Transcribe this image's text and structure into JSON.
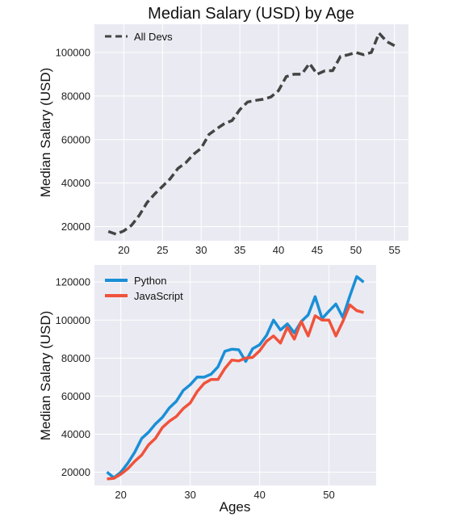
{
  "chart_data": [
    {
      "type": "line",
      "title": "Median Salary (USD) by Age",
      "xlabel": "",
      "ylabel": "Median Salary (USD)",
      "xlim": [
        16.2,
        56.8
      ],
      "ylim": [
        13500,
        113000
      ],
      "xticks": [
        20,
        25,
        30,
        35,
        40,
        45,
        50,
        55
      ],
      "yticks": [
        20000,
        40000,
        60000,
        80000,
        100000
      ],
      "grid": true,
      "legend_position": "top-left",
      "series": [
        {
          "name": "All Devs",
          "style": "dashed",
          "color": "#444444",
          "x": [
            18,
            19,
            20,
            21,
            22,
            23,
            24,
            25,
            26,
            27,
            28,
            29,
            30,
            31,
            32,
            33,
            34,
            35,
            36,
            37,
            38,
            39,
            40,
            41,
            42,
            43,
            44,
            45,
            46,
            47,
            48,
            49,
            50,
            51,
            52,
            53,
            54,
            55
          ],
          "y": [
            17784,
            16500,
            18012,
            20628,
            25206,
            31047,
            35000,
            38496,
            42000,
            46752,
            49320,
            53200,
            56000,
            62316,
            64928,
            67317,
            68748,
            73752,
            77232,
            78000,
            78508,
            79536,
            82488,
            88935,
            90000,
            90056,
            95000,
            90000,
            91633,
            91660,
            98150,
            98964,
            100000,
            98988,
            100000,
            108923,
            105000,
            103117
          ]
        }
      ]
    },
    {
      "type": "line",
      "title": "",
      "xlabel": "Ages",
      "ylabel": "Median Salary (USD)",
      "xlim": [
        16.2,
        56.8
      ],
      "ylim": [
        13000,
        129000
      ],
      "xticks": [
        20,
        30,
        40,
        50
      ],
      "yticks": [
        20000,
        40000,
        60000,
        80000,
        100000,
        120000
      ],
      "grid": true,
      "legend_position": "top-left",
      "series": [
        {
          "name": "Python",
          "color": "#1a8fd6",
          "x": [
            18,
            19,
            20,
            21,
            22,
            23,
            24,
            25,
            26,
            27,
            28,
            29,
            30,
            31,
            32,
            33,
            34,
            35,
            36,
            37,
            38,
            39,
            40,
            41,
            42,
            43,
            44,
            45,
            46,
            47,
            48,
            49,
            50,
            51,
            52,
            53,
            54,
            55
          ],
          "y": [
            20046,
            17100,
            20000,
            24744,
            30500,
            37732,
            41000,
            45372,
            48876,
            53850,
            57287,
            63016,
            65998,
            70003,
            70000,
            71496,
            75370,
            83640,
            84666,
            84392,
            78254,
            85000,
            87038,
            91991,
            100000,
            94796,
            97962,
            93302,
            99240,
            102736,
            112285,
            100771,
            104708,
            108423,
            101407,
            112542,
            122870,
            120000
          ]
        },
        {
          "name": "JavaScript",
          "color": "#f0523b",
          "x": [
            18,
            19,
            20,
            21,
            22,
            23,
            24,
            25,
            26,
            27,
            28,
            29,
            30,
            31,
            32,
            33,
            34,
            35,
            36,
            37,
            38,
            39,
            40,
            41,
            42,
            43,
            44,
            45,
            46,
            47,
            48,
            49,
            50,
            51,
            52,
            53,
            54,
            55
          ],
          "y": [
            16446,
            16791,
            18942,
            21780,
            25704,
            29000,
            34372,
            37810,
            43515,
            46823,
            49293,
            53437,
            56373,
            62375,
            66674,
            68745,
            68746,
            74583,
            79000,
            78508,
            79996,
            80403,
            83820,
            88833,
            91660,
            87892,
            96243,
            90000,
            99313,
            91660,
            102264,
            100000,
            100000,
            91660,
            99240,
            108000,
            105000,
            104000
          ]
        }
      ]
    }
  ]
}
